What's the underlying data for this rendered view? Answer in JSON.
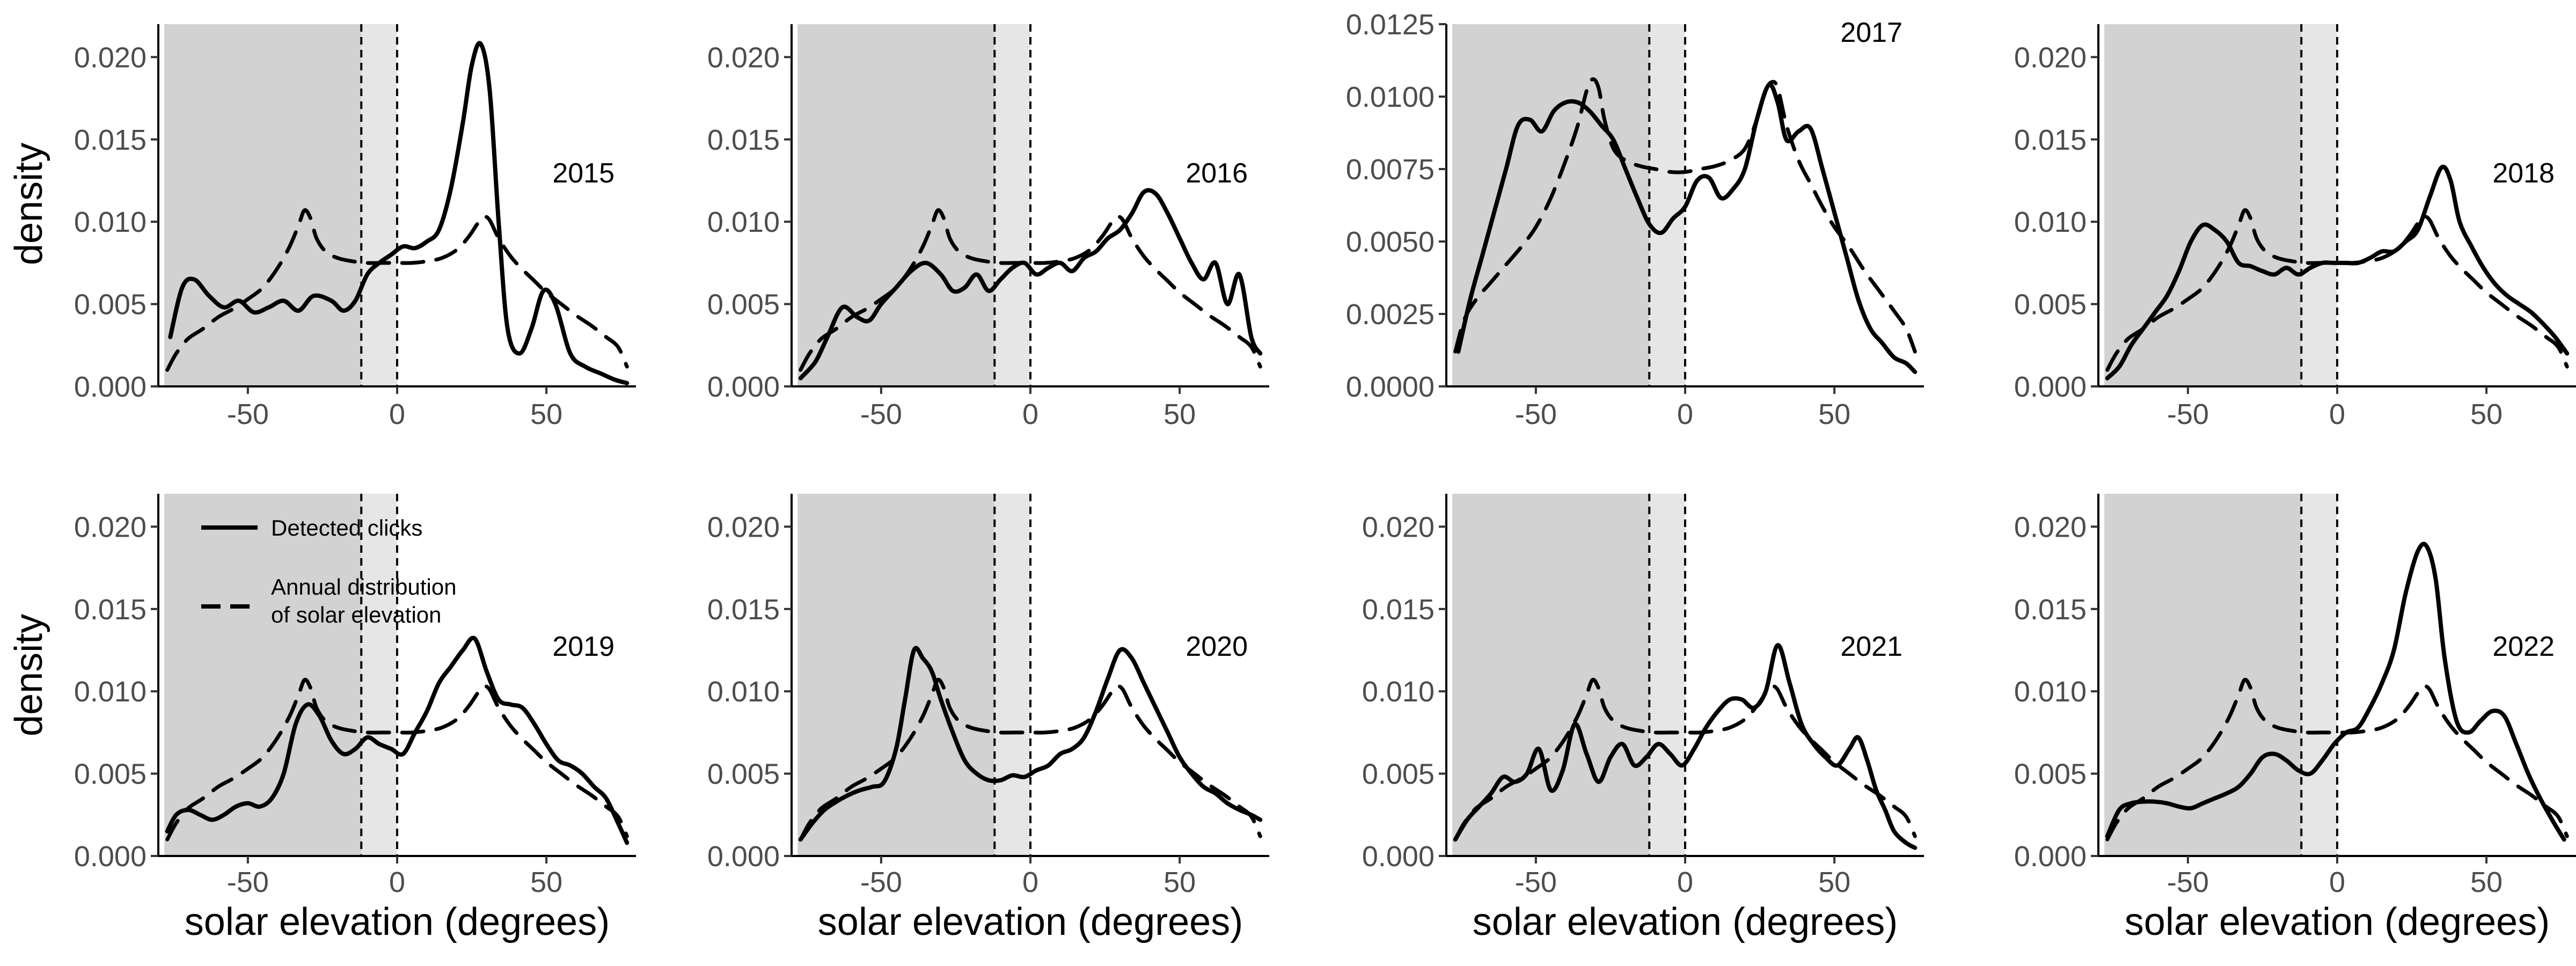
{
  "shared": {
    "xlabel": "solar elevation (degrees)",
    "ylabel": "density",
    "xlim": [
      -80,
      80
    ],
    "x_ticks": [
      -50,
      0,
      50
    ],
    "x_tick_labels": [
      "-50",
      "0",
      "50"
    ],
    "night_region": [
      -78,
      -12
    ],
    "twilight_region": [
      -12,
      0
    ],
    "vlines": [
      -12,
      0
    ],
    "region_colors": {
      "night": "#d2d2d2",
      "twilight": "#e6e6e6"
    },
    "line_color": "#000000"
  },
  "legend": {
    "items": [
      {
        "label_lines": [
          "Detected clicks"
        ],
        "style": "solid"
      },
      {
        "label_lines": [
          "Annual distribution",
          "of solar elevation"
        ],
        "style": "dashed"
      }
    ]
  },
  "chart_data": [
    {
      "type": "line",
      "year": "2015",
      "ylim": [
        0,
        0.022
      ],
      "y_ticks": [
        0,
        0.005,
        0.01,
        0.015,
        0.02
      ],
      "y_tick_labels": [
        "0.000",
        "0.005",
        "0.010",
        "0.015",
        "0.020"
      ],
      "series": [
        {
          "name": "Detected clicks",
          "style": "solid",
          "x": [
            -76,
            -72,
            -68,
            -63,
            -58,
            -53,
            -48,
            -43,
            -38,
            -33,
            -28,
            -22,
            -18,
            -14,
            -10,
            -6,
            -2,
            2,
            6,
            10,
            14,
            18,
            22,
            25,
            28,
            31,
            34,
            37,
            41,
            45,
            49,
            53,
            58,
            63,
            68,
            73,
            77
          ],
          "y": [
            0.003,
            0.006,
            0.0065,
            0.0055,
            0.0048,
            0.0052,
            0.0045,
            0.0048,
            0.0052,
            0.0046,
            0.0055,
            0.0052,
            0.0046,
            0.0052,
            0.0068,
            0.0075,
            0.008,
            0.0085,
            0.0084,
            0.0088,
            0.0095,
            0.012,
            0.016,
            0.0195,
            0.0208,
            0.018,
            0.01,
            0.0035,
            0.002,
            0.0035,
            0.0058,
            0.005,
            0.002,
            0.0012,
            0.0008,
            0.0004,
            0.0002
          ]
        },
        {
          "name": "Annual distribution of solar elevation",
          "style": "dashed",
          "ref": "annual_base"
        }
      ]
    },
    {
      "type": "line",
      "year": "2016",
      "ylim": [
        0,
        0.022
      ],
      "y_ticks": [
        0,
        0.005,
        0.01,
        0.015,
        0.02
      ],
      "y_tick_labels": [
        "0.000",
        "0.005",
        "0.010",
        "0.015",
        "0.020"
      ],
      "series": [
        {
          "name": "Detected clicks",
          "style": "solid",
          "x": [
            -77,
            -72,
            -68,
            -63,
            -58,
            -54,
            -50,
            -45,
            -40,
            -35,
            -30,
            -26,
            -22,
            -18,
            -14,
            -10,
            -6,
            -2,
            2,
            6,
            10,
            14,
            18,
            22,
            26,
            30,
            34,
            38,
            42,
            46,
            50,
            54,
            58,
            62,
            66,
            70,
            74,
            77
          ],
          "y": [
            0.0005,
            0.0015,
            0.003,
            0.0048,
            0.0042,
            0.004,
            0.005,
            0.006,
            0.007,
            0.0075,
            0.0068,
            0.0058,
            0.006,
            0.0068,
            0.0058,
            0.0065,
            0.0072,
            0.0075,
            0.0068,
            0.0072,
            0.0075,
            0.007,
            0.0078,
            0.0082,
            0.009,
            0.0095,
            0.0105,
            0.0118,
            0.0117,
            0.0105,
            0.009,
            0.0075,
            0.0065,
            0.0075,
            0.005,
            0.0068,
            0.003,
            0.002
          ]
        },
        {
          "name": "Annual distribution of solar elevation",
          "style": "dashed",
          "ref": "annual_base"
        }
      ]
    },
    {
      "type": "line",
      "year": "2017",
      "ylim": [
        0,
        0.0125
      ],
      "y_ticks": [
        0,
        0.0025,
        0.005,
        0.0075,
        0.01,
        0.0125
      ],
      "y_tick_labels": [
        "0.0000",
        "0.0025",
        "0.0050",
        "0.0075",
        "0.0100",
        "0.0125"
      ],
      "series": [
        {
          "name": "Detected clicks",
          "style": "solid",
          "x": [
            -76,
            -72,
            -68,
            -64,
            -60,
            -56,
            -52,
            -48,
            -44,
            -40,
            -36,
            -32,
            -28,
            -24,
            -20,
            -16,
            -12,
            -8,
            -4,
            0,
            4,
            8,
            12,
            16,
            20,
            24,
            28,
            31,
            34,
            38,
            42,
            46,
            50,
            54,
            58,
            62,
            66,
            70,
            74,
            77
          ],
          "y": [
            0.0012,
            0.003,
            0.0045,
            0.006,
            0.0075,
            0.009,
            0.0092,
            0.0088,
            0.0095,
            0.0098,
            0.0098,
            0.0095,
            0.009,
            0.0085,
            0.0075,
            0.0065,
            0.0056,
            0.0053,
            0.0058,
            0.0062,
            0.0071,
            0.0072,
            0.0065,
            0.0068,
            0.0075,
            0.0092,
            0.0104,
            0.0098,
            0.0085,
            0.0088,
            0.0089,
            0.0075,
            0.006,
            0.0045,
            0.003,
            0.002,
            0.0015,
            0.001,
            0.0008,
            0.0005
          ]
        },
        {
          "name": "Annual distribution of solar elevation",
          "style": "dashed",
          "x": [
            -77,
            -74,
            -70,
            -65,
            -60,
            -55,
            -50,
            -45,
            -40,
            -36,
            -33,
            -31,
            -29,
            -27,
            -24,
            -20,
            -15,
            -10,
            -5,
            0,
            5,
            10,
            15,
            20,
            24,
            27,
            29,
            31,
            34,
            38,
            42,
            46,
            50,
            55,
            60,
            65,
            70,
            74,
            77
          ],
          "y": [
            0.0012,
            0.0023,
            0.003,
            0.0036,
            0.0042,
            0.0048,
            0.0055,
            0.0065,
            0.0078,
            0.009,
            0.0102,
            0.0106,
            0.0103,
            0.0092,
            0.0082,
            0.0078,
            0.0076,
            0.0075,
            0.0074,
            0.0074,
            0.0075,
            0.0076,
            0.0078,
            0.0082,
            0.0092,
            0.0102,
            0.0105,
            0.0103,
            0.009,
            0.0078,
            0.007,
            0.0062,
            0.0055,
            0.0048,
            0.004,
            0.0033,
            0.0026,
            0.002,
            0.0012
          ]
        }
      ]
    },
    {
      "type": "line",
      "year": "2018",
      "ylim": [
        0,
        0.022
      ],
      "y_ticks": [
        0,
        0.005,
        0.01,
        0.015,
        0.02
      ],
      "y_tick_labels": [
        "0.000",
        "0.005",
        "0.010",
        "0.015",
        "0.020"
      ],
      "series": [
        {
          "name": "Detected clicks",
          "style": "solid",
          "x": [
            -77,
            -73,
            -69,
            -65,
            -61,
            -57,
            -53,
            -49,
            -45,
            -41,
            -37,
            -33,
            -29,
            -25,
            -21,
            -17,
            -13,
            -9,
            -5,
            -1,
            3,
            7,
            11,
            15,
            19,
            23,
            27,
            31,
            35,
            38,
            41,
            45,
            49,
            53,
            57,
            61,
            65,
            69,
            73,
            77
          ],
          "y": [
            0.0005,
            0.0012,
            0.0025,
            0.0035,
            0.0045,
            0.0055,
            0.007,
            0.0088,
            0.0098,
            0.0095,
            0.0088,
            0.0075,
            0.0073,
            0.007,
            0.0068,
            0.0072,
            0.0068,
            0.0072,
            0.0075,
            0.0075,
            0.0075,
            0.0075,
            0.0078,
            0.0082,
            0.0082,
            0.0088,
            0.0095,
            0.0115,
            0.0133,
            0.0125,
            0.01,
            0.0085,
            0.0072,
            0.0062,
            0.0055,
            0.005,
            0.0045,
            0.0038,
            0.003,
            0.002
          ]
        },
        {
          "name": "Annual distribution of solar elevation",
          "style": "dashed",
          "ref": "annual_base"
        }
      ]
    },
    {
      "type": "line",
      "year": "2019",
      "ylim": [
        0,
        0.022
      ],
      "y_ticks": [
        0,
        0.005,
        0.01,
        0.015,
        0.02
      ],
      "y_tick_labels": [
        "0.000",
        "0.005",
        "0.010",
        "0.015",
        "0.020"
      ],
      "series": [
        {
          "name": "Detected clicks",
          "style": "solid",
          "x": [
            -77,
            -74,
            -70,
            -66,
            -62,
            -58,
            -54,
            -50,
            -46,
            -42,
            -38,
            -34,
            -30,
            -26,
            -22,
            -18,
            -14,
            -10,
            -6,
            -2,
            2,
            6,
            10,
            14,
            18,
            22,
            26,
            30,
            34,
            38,
            42,
            46,
            50,
            54,
            58,
            62,
            66,
            70,
            74,
            77
          ],
          "y": [
            0.0015,
            0.0025,
            0.0028,
            0.0025,
            0.0022,
            0.0025,
            0.003,
            0.0032,
            0.003,
            0.0035,
            0.005,
            0.008,
            0.0092,
            0.0085,
            0.007,
            0.0062,
            0.0065,
            0.0072,
            0.0068,
            0.0065,
            0.0062,
            0.0075,
            0.0088,
            0.0105,
            0.0115,
            0.0125,
            0.0132,
            0.0112,
            0.0095,
            0.0092,
            0.009,
            0.008,
            0.0068,
            0.0058,
            0.0055,
            0.005,
            0.0042,
            0.0035,
            0.002,
            0.0008
          ]
        },
        {
          "name": "Annual distribution of solar elevation",
          "style": "dashed",
          "ref": "annual_base"
        }
      ]
    },
    {
      "type": "line",
      "year": "2020",
      "ylim": [
        0,
        0.022
      ],
      "y_ticks": [
        0,
        0.005,
        0.01,
        0.015,
        0.02
      ],
      "y_tick_labels": [
        "0.000",
        "0.005",
        "0.010",
        "0.015",
        "0.020"
      ],
      "series": [
        {
          "name": "Detected clicks",
          "style": "solid",
          "x": [
            -77,
            -73,
            -69,
            -65,
            -61,
            -57,
            -53,
            -49,
            -45,
            -42,
            -39,
            -36,
            -33,
            -30,
            -26,
            -22,
            -18,
            -14,
            -10,
            -6,
            -2,
            2,
            6,
            10,
            14,
            18,
            22,
            26,
            30,
            34,
            38,
            42,
            46,
            50,
            54,
            58,
            62,
            66,
            70,
            74,
            77
          ],
          "y": [
            0.001,
            0.002,
            0.0028,
            0.0033,
            0.0037,
            0.004,
            0.0042,
            0.0045,
            0.0065,
            0.0095,
            0.0125,
            0.012,
            0.0112,
            0.0095,
            0.0075,
            0.0058,
            0.005,
            0.0046,
            0.0046,
            0.0049,
            0.0048,
            0.0052,
            0.0055,
            0.0062,
            0.0065,
            0.0072,
            0.0088,
            0.0108,
            0.0125,
            0.012,
            0.0105,
            0.009,
            0.0075,
            0.006,
            0.005,
            0.0042,
            0.0038,
            0.0032,
            0.0028,
            0.0025,
            0.0022
          ]
        },
        {
          "name": "Annual distribution of solar elevation",
          "style": "dashed",
          "ref": "annual_base"
        }
      ]
    },
    {
      "type": "line",
      "year": "2021",
      "ylim": [
        0,
        0.022
      ],
      "y_ticks": [
        0,
        0.005,
        0.01,
        0.015,
        0.02
      ],
      "y_tick_labels": [
        "0.000",
        "0.005",
        "0.010",
        "0.015",
        "0.020"
      ],
      "series": [
        {
          "name": "Detected clicks",
          "style": "solid",
          "x": [
            -77,
            -73,
            -69,
            -65,
            -61,
            -57,
            -53,
            -49,
            -45,
            -41,
            -37,
            -33,
            -29,
            -25,
            -21,
            -17,
            -13,
            -9,
            -5,
            -1,
            3,
            7,
            11,
            15,
            19,
            23,
            27,
            31,
            35,
            39,
            43,
            47,
            51,
            55,
            58,
            61,
            64,
            67,
            70,
            74,
            77
          ],
          "y": [
            0.001,
            0.0022,
            0.003,
            0.0038,
            0.0048,
            0.0045,
            0.005,
            0.0065,
            0.004,
            0.0052,
            0.008,
            0.0062,
            0.0045,
            0.006,
            0.0068,
            0.0055,
            0.006,
            0.0068,
            0.0062,
            0.0055,
            0.0065,
            0.0078,
            0.0088,
            0.0095,
            0.0095,
            0.009,
            0.01,
            0.0128,
            0.0105,
            0.008,
            0.0068,
            0.006,
            0.0055,
            0.0065,
            0.0072,
            0.0058,
            0.004,
            0.0028,
            0.0015,
            0.0008,
            0.0005
          ]
        },
        {
          "name": "Annual distribution of solar elevation",
          "style": "dashed",
          "ref": "annual_base"
        }
      ]
    },
    {
      "type": "line",
      "year": "2022",
      "ylim": [
        0,
        0.022
      ],
      "y_ticks": [
        0,
        0.005,
        0.01,
        0.015,
        0.02
      ],
      "y_tick_labels": [
        "0.000",
        "0.005",
        "0.010",
        "0.015",
        "0.020"
      ],
      "series": [
        {
          "name": "Detected clicks",
          "style": "solid",
          "x": [
            -77,
            -73,
            -69,
            -65,
            -61,
            -57,
            -53,
            -49,
            -45,
            -41,
            -37,
            -33,
            -29,
            -25,
            -21,
            -17,
            -13,
            -9,
            -5,
            -1,
            3,
            7,
            11,
            15,
            19,
            23,
            27,
            30,
            33,
            36,
            40,
            44,
            48,
            52,
            56,
            60,
            64,
            68,
            72,
            76
          ],
          "y": [
            0.0012,
            0.0028,
            0.0032,
            0.0033,
            0.0033,
            0.0032,
            0.003,
            0.0029,
            0.0032,
            0.0035,
            0.0038,
            0.0042,
            0.005,
            0.006,
            0.0062,
            0.0058,
            0.0052,
            0.005,
            0.0058,
            0.0068,
            0.0075,
            0.0078,
            0.009,
            0.0105,
            0.0125,
            0.016,
            0.0185,
            0.0188,
            0.0168,
            0.012,
            0.0082,
            0.0075,
            0.0082,
            0.0088,
            0.0085,
            0.0068,
            0.005,
            0.0035,
            0.0022,
            0.001
          ]
        },
        {
          "name": "Annual distribution of solar elevation",
          "style": "dashed",
          "ref": "annual_base"
        }
      ]
    }
  ],
  "annual_base": {
    "x": [
      -77,
      -74,
      -70,
      -65,
      -60,
      -55,
      -50,
      -45,
      -40,
      -36,
      -33,
      -31,
      -29,
      -27,
      -24,
      -20,
      -15,
      -10,
      -5,
      0,
      5,
      10,
      15,
      20,
      24,
      27,
      29,
      31,
      34,
      38,
      42,
      46,
      50,
      55,
      60,
      65,
      70,
      74,
      77
    ],
    "y": [
      0.001,
      0.002,
      0.0029,
      0.0035,
      0.0042,
      0.0047,
      0.0053,
      0.006,
      0.0072,
      0.0085,
      0.0098,
      0.0107,
      0.0102,
      0.009,
      0.0082,
      0.0078,
      0.0076,
      0.0075,
      0.0075,
      0.0075,
      0.0075,
      0.0076,
      0.0078,
      0.0083,
      0.0091,
      0.0099,
      0.0103,
      0.0101,
      0.009,
      0.0079,
      0.0071,
      0.0064,
      0.0057,
      0.005,
      0.0043,
      0.0037,
      0.003,
      0.0024,
      0.0012
    ]
  }
}
